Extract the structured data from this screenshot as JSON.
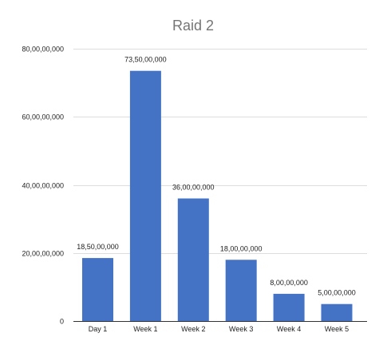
{
  "colors": {
    "bar": "#4472c4",
    "gridline": "#dddddd",
    "baseline": "#333333",
    "title": "#757575",
    "text": "#222222"
  },
  "chart_data": {
    "type": "bar",
    "title": "Raid 2",
    "xlabel": "",
    "ylabel": "",
    "categories": [
      "Day 1",
      "Week 1",
      "Week 2",
      "Week 3",
      "Week 4",
      "Week 5"
    ],
    "values": [
      185000000,
      735000000,
      360000000,
      180000000,
      80000000,
      50000000
    ],
    "value_labels": [
      "18,50,00,000",
      "73,50,00,000",
      "36,00,00,000",
      "18,00,00,000",
      "8,00,00,000",
      "5,00,00,000"
    ],
    "ylim": [
      0,
      800000000
    ],
    "yticks": [
      0,
      200000000,
      400000000,
      600000000,
      800000000
    ],
    "ytick_labels": [
      "0",
      "20,00,00,000",
      "40,00,00,000",
      "60,00,00,000",
      "80,00,00,000"
    ],
    "grid": true,
    "legend": "none"
  }
}
